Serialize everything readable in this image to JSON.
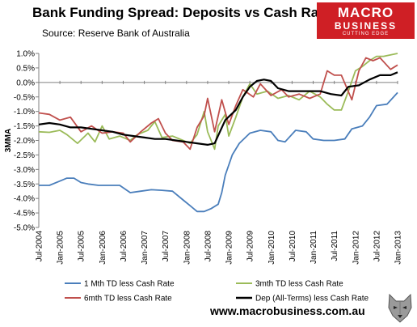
{
  "header": {
    "title": "Bank Funding Spread: Deposits vs Cash Rate",
    "source": "Source: Reserve Bank of Australia"
  },
  "logo": {
    "line1": "MACRO",
    "line2": "BUSINESS",
    "line3": "CUTTING EDGE"
  },
  "footer": {
    "website": "www.macrobusiness.com.au"
  },
  "colors": {
    "one_month": "#4a7ebb",
    "three_month": "#9bbb59",
    "six_month": "#c0504d",
    "dep_all_terms": "#000000",
    "logo_bg": "#cf1f25"
  },
  "icons": {
    "wolf": "wolf-head-icon"
  },
  "chart_data": {
    "type": "line",
    "title": "Bank Funding Spread: Deposits vs Cash Rate",
    "ylabel": "3MMA",
    "xlabel": "",
    "ylim": [
      -5.0,
      1.0
    ],
    "xlim": [
      "2004-07",
      "2013-01"
    ],
    "y_ticks": [
      "1.0%",
      "0.5%",
      "0.0%",
      "-0.5%",
      "-1.0%",
      "-1.5%",
      "-2.0%",
      "-2.5%",
      "-3.0%",
      "-3.5%",
      "-4.0%",
      "-4.5%",
      "-5.0%"
    ],
    "x_ticks": [
      "Jul-2004",
      "Jan-2005",
      "Jul-2005",
      "Jan-2006",
      "Jul-2006",
      "Jan-2007",
      "Jul-2007",
      "Jan-2008",
      "Jul-2008",
      "Jan-2009",
      "Jul-2009",
      "Jan-2010",
      "Jul-2010",
      "Jan-2011",
      "Jul-2011",
      "Jan-2012",
      "Jul-2012",
      "Jan-2013"
    ],
    "grid": false,
    "legend_position": "bottom",
    "series": [
      {
        "name": "1 Mth TD less Cash Rate",
        "points": [
          [
            "2004-07",
            -3.55
          ],
          [
            "2004-10",
            -3.55
          ],
          [
            "2005-01",
            -3.4
          ],
          [
            "2005-03",
            -3.3
          ],
          [
            "2005-05",
            -3.3
          ],
          [
            "2005-07",
            -3.45
          ],
          [
            "2005-09",
            -3.5
          ],
          [
            "2005-12",
            -3.55
          ],
          [
            "2006-03",
            -3.55
          ],
          [
            "2006-06",
            -3.55
          ],
          [
            "2006-09",
            -3.8
          ],
          [
            "2006-12",
            -3.75
          ],
          [
            "2007-03",
            -3.7
          ],
          [
            "2007-06",
            -3.72
          ],
          [
            "2007-09",
            -3.75
          ],
          [
            "2007-12",
            -4.05
          ],
          [
            "2008-02",
            -4.25
          ],
          [
            "2008-04",
            -4.45
          ],
          [
            "2008-06",
            -4.45
          ],
          [
            "2008-08",
            -4.35
          ],
          [
            "2008-10",
            -4.2
          ],
          [
            "2008-11",
            -3.8
          ],
          [
            "2008-12",
            -3.2
          ],
          [
            "2009-02",
            -2.5
          ],
          [
            "2009-04",
            -2.1
          ],
          [
            "2009-07",
            -1.75
          ],
          [
            "2009-10",
            -1.65
          ],
          [
            "2010-01",
            -1.7
          ],
          [
            "2010-03",
            -2.0
          ],
          [
            "2010-05",
            -2.05
          ],
          [
            "2010-08",
            -1.65
          ],
          [
            "2010-11",
            -1.7
          ],
          [
            "2011-01",
            -1.95
          ],
          [
            "2011-04",
            -2.0
          ],
          [
            "2011-07",
            -2.0
          ],
          [
            "2011-10",
            -1.95
          ],
          [
            "2011-12",
            -1.6
          ],
          [
            "2012-03",
            -1.5
          ],
          [
            "2012-05",
            -1.2
          ],
          [
            "2012-07",
            -0.8
          ],
          [
            "2012-10",
            -0.75
          ],
          [
            "2013-01",
            -0.35
          ]
        ]
      },
      {
        "name": "3mth TD less Cash Rate",
        "points": [
          [
            "2004-07",
            -1.7
          ],
          [
            "2004-10",
            -1.72
          ],
          [
            "2005-01",
            -1.65
          ],
          [
            "2005-03",
            -1.8
          ],
          [
            "2005-06",
            -2.1
          ],
          [
            "2005-09",
            -1.75
          ],
          [
            "2005-11",
            -2.05
          ],
          [
            "2006-01",
            -1.5
          ],
          [
            "2006-03",
            -1.95
          ],
          [
            "2006-06",
            -1.85
          ],
          [
            "2006-09",
            -2.0
          ],
          [
            "2006-11",
            -1.8
          ],
          [
            "2007-02",
            -1.65
          ],
          [
            "2007-04",
            -1.35
          ],
          [
            "2007-06",
            -1.9
          ],
          [
            "2007-09",
            -1.85
          ],
          [
            "2007-12",
            -2.0
          ],
          [
            "2008-02",
            -2.1
          ],
          [
            "2008-04",
            -1.8
          ],
          [
            "2008-06",
            -1.0
          ],
          [
            "2008-07",
            -1.7
          ],
          [
            "2008-09",
            -2.3
          ],
          [
            "2008-10",
            -1.5
          ],
          [
            "2008-12",
            -1.1
          ],
          [
            "2009-01",
            -1.85
          ],
          [
            "2009-03",
            -1.2
          ],
          [
            "2009-05",
            -0.5
          ],
          [
            "2009-07",
            -0.05
          ],
          [
            "2009-09",
            -0.4
          ],
          [
            "2009-12",
            -0.3
          ],
          [
            "2010-03",
            -0.55
          ],
          [
            "2010-06",
            -0.45
          ],
          [
            "2010-09",
            -0.6
          ],
          [
            "2010-12",
            -0.3
          ],
          [
            "2011-03",
            -0.5
          ],
          [
            "2011-05",
            -0.75
          ],
          [
            "2011-07",
            -0.95
          ],
          [
            "2011-09",
            -0.95
          ],
          [
            "2011-11",
            -0.3
          ],
          [
            "2012-01",
            0.4
          ],
          [
            "2012-03",
            0.55
          ],
          [
            "2012-05",
            0.75
          ],
          [
            "2012-07",
            0.9
          ],
          [
            "2012-09",
            0.9
          ],
          [
            "2013-01",
            1.0
          ]
        ]
      },
      {
        "name": "6mth TD less Cash Rate",
        "points": [
          [
            "2004-07",
            -1.05
          ],
          [
            "2004-10",
            -1.1
          ],
          [
            "2005-01",
            -1.3
          ],
          [
            "2005-04",
            -1.2
          ],
          [
            "2005-07",
            -1.7
          ],
          [
            "2005-10",
            -1.5
          ],
          [
            "2006-01",
            -1.75
          ],
          [
            "2006-04",
            -1.7
          ],
          [
            "2006-07",
            -1.75
          ],
          [
            "2006-09",
            -2.05
          ],
          [
            "2006-12",
            -1.7
          ],
          [
            "2007-03",
            -1.4
          ],
          [
            "2007-05",
            -1.25
          ],
          [
            "2007-07",
            -1.75
          ],
          [
            "2007-09",
            -2.0
          ],
          [
            "2007-12",
            -2.05
          ],
          [
            "2008-02",
            -2.3
          ],
          [
            "2008-04",
            -1.55
          ],
          [
            "2008-06",
            -1.15
          ],
          [
            "2008-07",
            -0.55
          ],
          [
            "2008-09",
            -1.7
          ],
          [
            "2008-11",
            -0.6
          ],
          [
            "2009-01",
            -1.45
          ],
          [
            "2009-03",
            -0.8
          ],
          [
            "2009-05",
            -0.25
          ],
          [
            "2009-08",
            -0.5
          ],
          [
            "2009-10",
            -0.05
          ],
          [
            "2010-01",
            -0.45
          ],
          [
            "2010-04",
            -0.25
          ],
          [
            "2010-06",
            -0.5
          ],
          [
            "2010-09",
            -0.4
          ],
          [
            "2010-12",
            -0.55
          ],
          [
            "2011-03",
            -0.4
          ],
          [
            "2011-05",
            0.4
          ],
          [
            "2011-07",
            0.25
          ],
          [
            "2011-09",
            0.25
          ],
          [
            "2011-12",
            -0.6
          ],
          [
            "2012-02",
            0.4
          ],
          [
            "2012-04",
            0.85
          ],
          [
            "2012-06",
            0.75
          ],
          [
            "2012-08",
            0.85
          ],
          [
            "2012-11",
            0.45
          ],
          [
            "2013-01",
            0.6
          ]
        ]
      },
      {
        "name": "Dep (All-Terms) less Cash Rate",
        "points": [
          [
            "2004-07",
            -1.45
          ],
          [
            "2004-10",
            -1.4
          ],
          [
            "2005-01",
            -1.45
          ],
          [
            "2005-04",
            -1.55
          ],
          [
            "2005-07",
            -1.55
          ],
          [
            "2005-10",
            -1.6
          ],
          [
            "2006-01",
            -1.65
          ],
          [
            "2006-04",
            -1.7
          ],
          [
            "2006-07",
            -1.8
          ],
          [
            "2006-10",
            -1.85
          ],
          [
            "2007-01",
            -1.9
          ],
          [
            "2007-04",
            -1.95
          ],
          [
            "2007-07",
            -1.95
          ],
          [
            "2007-10",
            -2.0
          ],
          [
            "2008-01",
            -2.05
          ],
          [
            "2008-04",
            -2.1
          ],
          [
            "2008-07",
            -2.15
          ],
          [
            "2008-09",
            -2.1
          ],
          [
            "2008-12",
            -1.3
          ],
          [
            "2009-03",
            -0.95
          ],
          [
            "2009-05",
            -0.5
          ],
          [
            "2009-07",
            -0.15
          ],
          [
            "2009-09",
            0.05
          ],
          [
            "2009-11",
            0.1
          ],
          [
            "2010-01",
            0.05
          ],
          [
            "2010-03",
            -0.2
          ],
          [
            "2010-06",
            -0.3
          ],
          [
            "2010-09",
            -0.3
          ],
          [
            "2010-12",
            -0.3
          ],
          [
            "2011-03",
            -0.3
          ],
          [
            "2011-06",
            -0.4
          ],
          [
            "2011-09",
            -0.45
          ],
          [
            "2011-11",
            -0.15
          ],
          [
            "2012-02",
            -0.1
          ],
          [
            "2012-05",
            0.1
          ],
          [
            "2012-08",
            0.25
          ],
          [
            "2012-11",
            0.25
          ],
          [
            "2013-01",
            0.35
          ]
        ]
      }
    ]
  }
}
